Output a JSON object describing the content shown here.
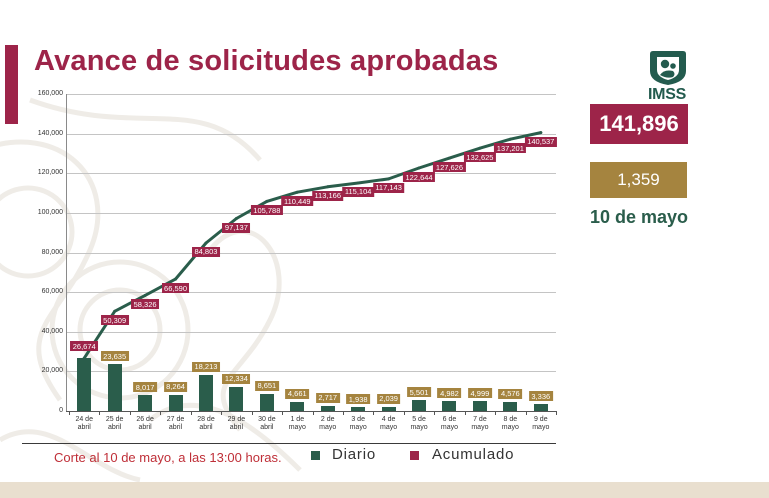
{
  "slide": {
    "title": "Avance de solicitudes aprobadas",
    "footnote": "Corte al 10 de mayo, a las 13:00 horas."
  },
  "logo": {
    "text": "IMSS",
    "icon": "imss-emblem"
  },
  "summary": {
    "total_accumulated": "141,896",
    "daily": "1,359",
    "date": "10 de mayo"
  },
  "colors": {
    "maroon": "#9d2449",
    "green": "#2a5d4b",
    "gold": "#a5843f",
    "footnote_red": "#bf2f38",
    "bottom_band": "#e9dfcf"
  },
  "legend": [
    {
      "label": "Diario",
      "color": "#2a5d4b"
    },
    {
      "label": "Acumulado",
      "color": "#9d2449"
    }
  ],
  "chart_data": {
    "type": "bar",
    "categories": [
      "24 de abril",
      "25 de abril",
      "26 de abril",
      "27 de abril",
      "28 de abril",
      "29 de abril",
      "30 de abril",
      "1 de mayo",
      "2 de mayo",
      "3 de mayo",
      "4 de mayo",
      "5 de mayo",
      "6 de mayo",
      "7 de mayo",
      "8 de mayo",
      "9 de mayo"
    ],
    "series": [
      {
        "name": "Diario",
        "type": "bar",
        "color": "#2a5d4b",
        "label_color": "#a5843f",
        "values": [
          26674,
          23635,
          8017,
          8264,
          18213,
          12334,
          8651,
          4661,
          2717,
          1938,
          2039,
          5501,
          4982,
          4999,
          4576,
          3336
        ],
        "labels": [
          null,
          "23,635",
          "8,017",
          "8,264",
          "18,213",
          "12,334",
          "8,651",
          "4,661",
          "2,717",
          "1,938",
          "2,039",
          "5,501",
          "4,982",
          "4,999",
          "4,576",
          "3,336"
        ]
      },
      {
        "name": "Acumulado",
        "type": "line",
        "color": "#2a5d4b",
        "label_color": "#9d2449",
        "values": [
          26674,
          50309,
          58326,
          66590,
          84803,
          97137,
          105788,
          110449,
          113166,
          115104,
          117143,
          122644,
          127626,
          132625,
          137201,
          140537
        ],
        "labels": [
          "26,674",
          "50,309",
          "58,326",
          "66,590",
          "84,803",
          "97,137",
          "105,788",
          "110,449",
          "113,166",
          "115,104",
          "117,143",
          "122,644",
          "127,626",
          "132,625",
          "137,201",
          "140,537"
        ]
      }
    ],
    "yticks": [
      0,
      20000,
      40000,
      60000,
      80000,
      100000,
      120000,
      140000,
      160000
    ],
    "ytick_labels": [
      "0",
      "20,000",
      "40,000",
      "60,000",
      "80,000",
      "100,000",
      "120,000",
      "140,000",
      "160,000"
    ],
    "ylim": [
      0,
      160000
    ],
    "grid": true,
    "legend_position": "bottom"
  }
}
